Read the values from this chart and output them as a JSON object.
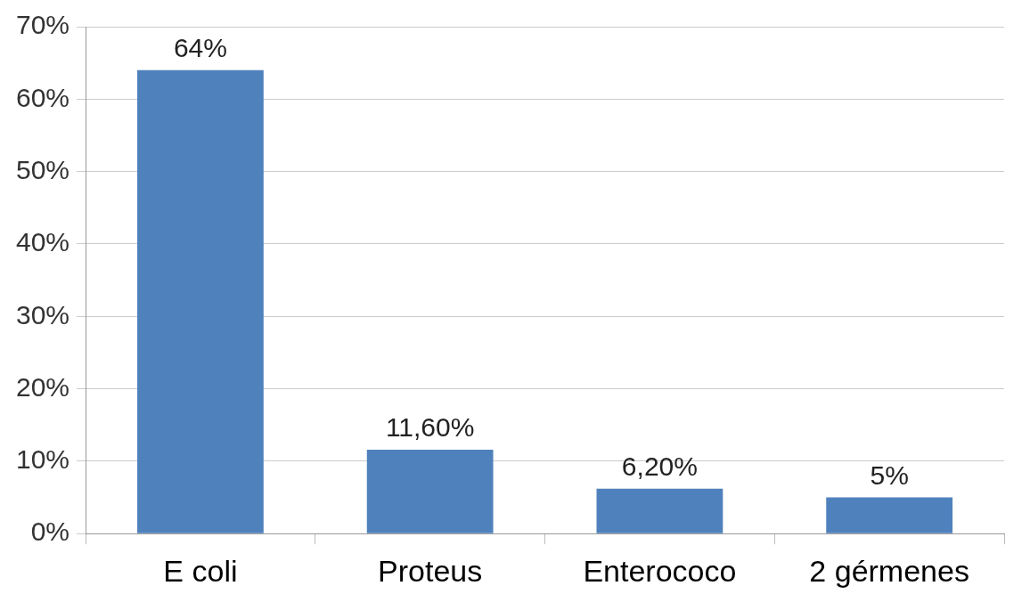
{
  "chart_data": {
    "type": "bar",
    "categories": [
      "E coli",
      "Proteus",
      "Enterococo",
      "2 gérmenes"
    ],
    "values": [
      64,
      11.6,
      6.2,
      5
    ],
    "color": "#4f81bd",
    "value_labels": [
      "64%",
      "11,60%",
      "6,20%",
      "5%"
    ],
    "ylim": [
      0,
      70
    ],
    "yticks": [
      {
        "value": 0,
        "label": "0%"
      },
      {
        "value": 10,
        "label": "10%"
      },
      {
        "value": 20,
        "label": "20%"
      },
      {
        "value": 30,
        "label": "30%"
      },
      {
        "value": 40,
        "label": "40%"
      },
      {
        "value": 50,
        "label": "50%"
      },
      {
        "value": 60,
        "label": "60%"
      },
      {
        "value": 70,
        "label": "70%"
      }
    ],
    "grid": "y",
    "legend": false
  }
}
